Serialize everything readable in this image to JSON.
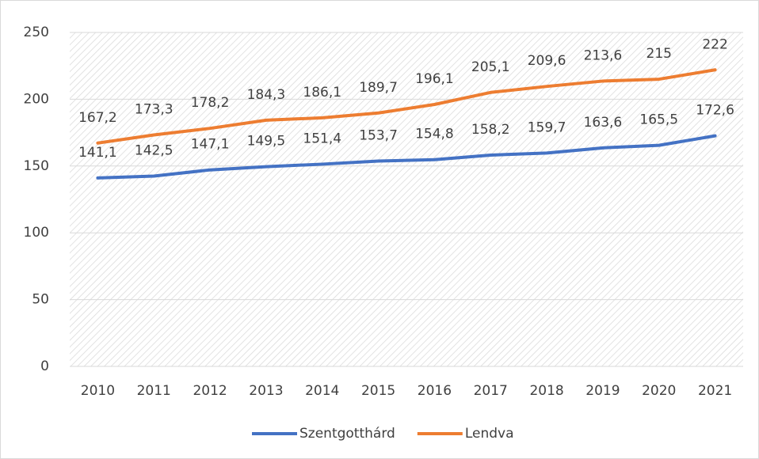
{
  "chart_data": {
    "type": "line",
    "categories": [
      "2010",
      "2011",
      "2012",
      "2013",
      "2014",
      "2015",
      "2016",
      "2017",
      "2018",
      "2019",
      "2020",
      "2021"
    ],
    "series": [
      {
        "name": "Szentgotthárd",
        "color": "#4472c4",
        "values": [
          141.1,
          142.5,
          147.1,
          149.5,
          151.4,
          153.7,
          154.8,
          158.2,
          159.7,
          163.6,
          165.5,
          172.6
        ],
        "value_labels": [
          "141,1",
          "142,5",
          "147,1",
          "149,5",
          "151,4",
          "153,7",
          "154,8",
          "158,2",
          "159,7",
          "163,6",
          "165,5",
          "172,6"
        ]
      },
      {
        "name": "Lendva",
        "color": "#ed7d31",
        "values": [
          167.2,
          173.3,
          178.2,
          184.3,
          186.1,
          189.7,
          196.1,
          205.1,
          209.6,
          213.6,
          215,
          222
        ],
        "value_labels": [
          "167,2",
          "173,3",
          "178,2",
          "184,3",
          "186,1",
          "189,7",
          "196,1",
          "205,1",
          "209,6",
          "213,6",
          "215",
          "222"
        ]
      }
    ],
    "ylim": [
      0,
      250
    ],
    "yticks": [
      0,
      50,
      100,
      150,
      200,
      250
    ],
    "grid": true,
    "legend": "bottom"
  }
}
